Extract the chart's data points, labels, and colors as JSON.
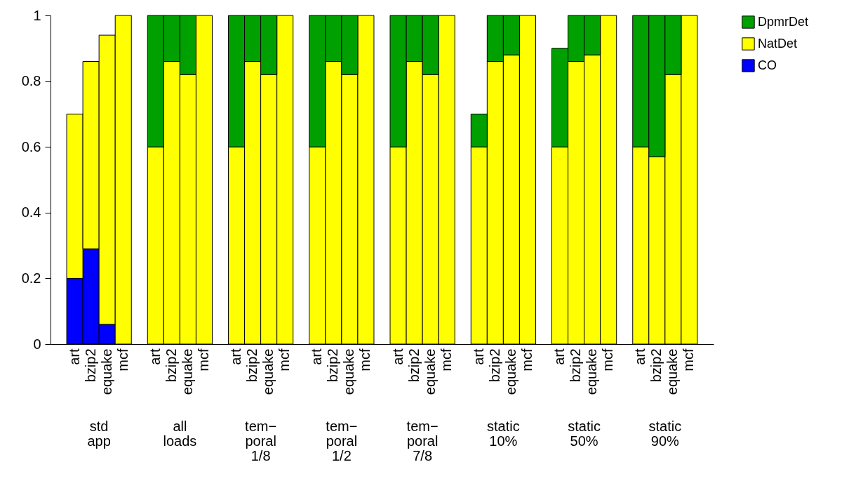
{
  "chart_data": {
    "type": "bar",
    "stacked": true,
    "legend": "right",
    "categories": [
      "art",
      "bzip2",
      "equake",
      "mcf",
      null,
      "art",
      "bzip2",
      "equake",
      "mcf",
      null,
      "art",
      "bzip2",
      "equake",
      "mcf",
      null,
      "art",
      "bzip2",
      "equake",
      "mcf",
      null,
      "art",
      "bzip2",
      "equake",
      "mcf",
      null,
      "art",
      "bzip2",
      "equake",
      "mcf",
      null,
      "art",
      "bzip2",
      "equake",
      "mcf",
      null,
      "art",
      "bzip2",
      "equake",
      "mcf"
    ],
    "ylim": [
      0,
      1
    ],
    "yticks": [
      0,
      0.2,
      0.4,
      0.6,
      0.8,
      1
    ],
    "annotations": [
      "std\napp",
      "all\nloads",
      "tem−\nporal\n1/8",
      "tem−\nporal\n1/2",
      "tem−\nporal\n7/8",
      "static\n10%",
      "static\n50%",
      "static\n90%"
    ],
    "series": [
      {
        "name": "CO",
        "color": "#0000ff",
        "values": [
          0.2,
          0.29,
          0.06,
          null,
          null,
          null,
          null,
          null,
          null,
          null,
          null,
          null,
          null,
          null,
          null,
          null,
          null,
          null,
          null,
          null,
          null,
          null,
          null,
          null,
          null,
          null,
          null,
          null,
          null,
          null,
          null,
          null,
          null,
          null,
          null,
          null,
          null,
          null,
          null
        ]
      },
      {
        "name": "NatDet",
        "color": "#ffff00",
        "values": [
          0.5,
          0.57,
          0.88,
          1,
          null,
          0.6,
          0.86,
          0.82,
          1,
          null,
          0.6,
          0.86,
          0.82,
          1,
          null,
          0.6,
          0.86,
          0.82,
          1,
          null,
          0.6,
          0.86,
          0.82,
          1,
          null,
          0.6,
          0.86,
          0.88,
          1,
          null,
          0.6,
          0.86,
          0.88,
          1,
          null,
          0.6,
          0.57,
          0.82,
          1
        ]
      },
      {
        "name": "DpmrDet",
        "color": "#00a000",
        "values": [
          null,
          null,
          null,
          null,
          null,
          0.4,
          0.14,
          0.18,
          null,
          null,
          0.4,
          0.14,
          0.18,
          null,
          null,
          0.4,
          0.14,
          0.18,
          null,
          null,
          0.4,
          0.14,
          0.18,
          null,
          null,
          0.1,
          0.14,
          0.12,
          null,
          null,
          0.3,
          0.14,
          0.12,
          null,
          null,
          0.4,
          0.43,
          0.18,
          null
        ]
      }
    ]
  }
}
